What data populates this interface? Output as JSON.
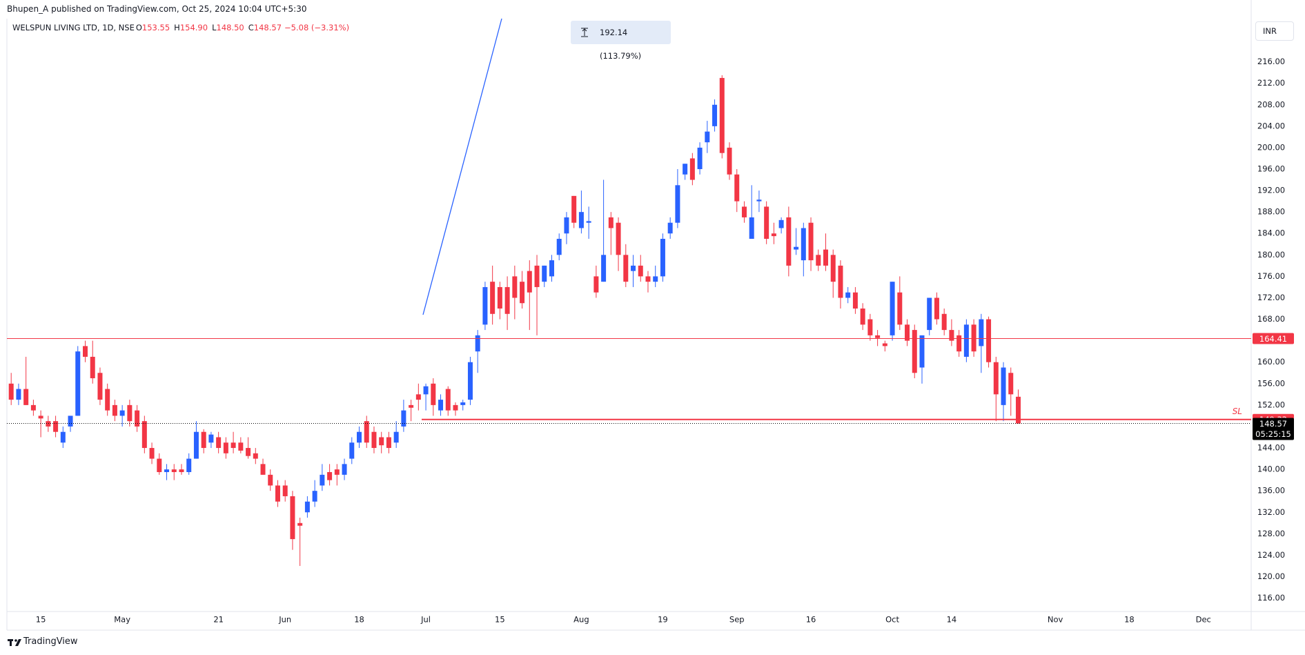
{
  "chart_data": {
    "type": "candlestick",
    "publisher_note": "Bhupen_A published on TradingView.com, Oct 25, 2024 10:04 UTC+5:30",
    "title": "WELSPUN LIVING LTD, 1D, NSE",
    "ohlc_legend": [
      {
        "label": "O",
        "value": "153.55"
      },
      {
        "label": "H",
        "value": "154.90"
      },
      {
        "label": "L",
        "value": "148.50"
      },
      {
        "label": "C",
        "value": "148.57"
      }
    ],
    "change": "−5.08 (−3.31%)",
    "measure": "192.14 (113.79%)",
    "currency": "INR",
    "brand": "TradingView",
    "up_color": "#2962ff",
    "down_color": "#f23645",
    "categories": [
      null,
      null,
      null,
      null,
      "15",
      null,
      null,
      null,
      null,
      null,
      null,
      null,
      null,
      null,
      null,
      "May",
      null,
      null,
      null,
      null,
      null,
      null,
      null,
      null,
      null,
      null,
      null,
      null,
      "21",
      null,
      null,
      null,
      null,
      null,
      null,
      null,
      null,
      "Jun",
      null,
      null,
      null,
      null,
      null,
      null,
      null,
      null,
      null,
      "18",
      null,
      null,
      null,
      null,
      null,
      null,
      null,
      null,
      "Jul",
      null,
      null,
      null,
      null,
      null,
      null,
      null,
      null,
      null,
      "15",
      null,
      null,
      null,
      null,
      null,
      null,
      null,
      null,
      null,
      null,
      "Aug",
      null,
      null,
      null,
      null,
      null,
      null,
      null,
      null,
      null,
      null,
      "19",
      null,
      null,
      null,
      null,
      null,
      null,
      null,
      null,
      null,
      "Sep",
      null,
      null,
      null,
      null,
      null,
      null,
      null,
      null,
      null,
      "16",
      null,
      null,
      null,
      null,
      null,
      null,
      null,
      null,
      null,
      null,
      "Oct",
      null,
      null,
      null,
      null,
      null,
      null,
      null,
      "14",
      null,
      null,
      null,
      null,
      null,
      null,
      null,
      null,
      null,
      null,
      null,
      null,
      null,
      "Nov",
      null,
      null,
      null,
      null,
      null,
      null,
      null,
      null,
      null,
      "18",
      null,
      null,
      null,
      null,
      null,
      null,
      null,
      null,
      null,
      "Dec",
      null,
      null,
      null,
      null,
      null,
      null
    ],
    "open": [
      156,
      153,
      155,
      152,
      150,
      149,
      149,
      145,
      148,
      150,
      163,
      161,
      158,
      155,
      152,
      150,
      152,
      151,
      149,
      144,
      142,
      139.5,
      140,
      140,
      139.5,
      142,
      147,
      145,
      146,
      145,
      145,
      145,
      144,
      143,
      141,
      139,
      137,
      137,
      135,
      130,
      132,
      134,
      137,
      139.5,
      140,
      139,
      142,
      145,
      149,
      147,
      146,
      146,
      145,
      148,
      152,
      154,
      154,
      156,
      151,
      155,
      152,
      152,
      153,
      162,
      167,
      175,
      174,
      174,
      176,
      175,
      177,
      178,
      175,
      176,
      180,
      184,
      191,
      185,
      186,
      176,
      175,
      187,
      186,
      180,
      177,
      178,
      176,
      175,
      176,
      184,
      186,
      195,
      198,
      196,
      201,
      204,
      213,
      200,
      195,
      189,
      183,
      190,
      189,
      184,
      185,
      187,
      181,
      179,
      186,
      180,
      181,
      180,
      178,
      172,
      173,
      170,
      168,
      165,
      163.5,
      165,
      173,
      167,
      166,
      159,
      166,
      172,
      169,
      166,
      165,
      161,
      167,
      163,
      168,
      160,
      152,
      158,
      153.55,
      null,
      null,
      null,
      null,
      null,
      null,
      null,
      null,
      null,
      null,
      null,
      null,
      null,
      null,
      null,
      null,
      null,
      null,
      null,
      null,
      null,
      null,
      null,
      null,
      null,
      null,
      null,
      null,
      null,
      null,
      null
    ],
    "high": [
      158,
      156,
      161,
      153,
      151,
      150,
      150,
      148,
      150,
      163,
      164,
      164,
      159,
      156,
      153,
      152,
      153,
      152,
      150,
      145,
      143,
      141,
      141,
      141,
      143,
      149,
      147.5,
      147,
      147,
      146,
      147,
      146,
      146,
      144,
      142,
      140,
      138,
      138,
      136,
      131,
      135,
      138,
      141,
      141,
      141,
      142,
      146,
      148,
      150,
      148,
      147,
      147,
      149,
      153,
      153,
      156,
      156,
      157,
      154,
      155.5,
      152.5,
      153,
      161,
      166,
      175,
      178,
      175,
      176,
      178,
      177,
      179,
      180,
      178,
      180,
      184,
      188,
      191,
      192,
      189,
      178,
      194,
      188,
      187,
      182,
      180,
      180,
      177,
      178,
      184,
      187,
      196,
      197,
      199,
      201,
      205,
      209,
      213.5,
      201,
      196,
      190,
      193,
      192,
      190,
      186,
      187,
      189,
      185,
      186,
      187,
      181,
      184,
      181,
      179,
      174,
      174,
      171,
      169,
      166,
      164,
      175,
      176,
      168,
      167,
      165,
      172,
      173,
      170,
      168,
      166,
      168,
      168,
      169,
      168.5,
      161,
      160,
      159,
      154.9,
      null,
      null,
      null,
      null,
      null,
      null,
      null,
      null,
      null,
      null,
      null,
      null,
      null,
      null,
      null,
      null,
      null,
      null,
      null,
      null,
      null,
      null,
      null,
      null,
      null,
      null,
      null,
      null,
      null,
      null,
      null
    ],
    "low": [
      152,
      152,
      152,
      150,
      146,
      147,
      146,
      144,
      147,
      150,
      160,
      156,
      152,
      150,
      149,
      148,
      148,
      147,
      143,
      141,
      139,
      138,
      138,
      139,
      139,
      142,
      143,
      144,
      143,
      142,
      143,
      143,
      142,
      141,
      139,
      136,
      133,
      134,
      125,
      122,
      131,
      133,
      136,
      137,
      137,
      138,
      141,
      144,
      144,
      143,
      143,
      143,
      144,
      147,
      149,
      151,
      151,
      150,
      150,
      150,
      150,
      151,
      152,
      158,
      166,
      167,
      168,
      166,
      168,
      170,
      166,
      165,
      174,
      175,
      179,
      182,
      185,
      184,
      183,
      172,
      175,
      180,
      177,
      174,
      174,
      175,
      173,
      174,
      175,
      183,
      185,
      194,
      193,
      195,
      199,
      203,
      198,
      194,
      188,
      186,
      183,
      188,
      182,
      182,
      184,
      176,
      180,
      176,
      177,
      177,
      177,
      172,
      170,
      171,
      169,
      166,
      164,
      163,
      162,
      164,
      166,
      163,
      157,
      156,
      165,
      167,
      165,
      163,
      161,
      160,
      161,
      158,
      159,
      149,
      149,
      150,
      148.5,
      null,
      null,
      null,
      null,
      null,
      null,
      null,
      null,
      null,
      null,
      null,
      null,
      null,
      null,
      null,
      null,
      null,
      null,
      null,
      null,
      null,
      null,
      null,
      null,
      null,
      null,
      null,
      null,
      null,
      null,
      null
    ],
    "close": [
      153,
      155,
      152,
      151,
      149.5,
      148,
      147,
      147,
      150,
      162,
      161,
      157,
      153,
      151,
      150,
      151,
      149,
      148,
      144,
      142,
      139.5,
      140,
      139.5,
      139.5,
      142,
      147,
      144,
      146.5,
      144,
      143,
      144,
      143.5,
      142.5,
      142,
      139,
      137,
      134,
      135,
      127,
      129.5,
      134,
      136,
      139,
      138,
      139,
      141,
      145,
      147,
      145,
      144,
      144.5,
      144,
      147,
      151,
      151.5,
      153,
      155.5,
      152,
      153,
      151,
      151,
      152.5,
      160,
      165,
      174,
      169,
      170,
      169,
      172,
      171,
      173,
      174,
      178,
      179,
      183,
      187,
      186,
      188,
      186.3,
      173,
      180,
      185,
      180,
      175,
      178,
      176,
      175,
      176,
      183,
      186,
      193,
      197,
      194,
      200,
      203,
      208,
      199,
      195,
      190,
      187,
      187,
      190.3,
      183,
      183.5,
      186.5,
      178,
      181.5,
      185,
      179,
      178,
      178,
      175,
      172,
      173,
      170,
      167,
      165,
      164.5,
      163,
      175,
      167,
      164,
      158,
      165,
      172,
      168,
      166,
      164,
      162,
      167,
      162,
      168,
      160,
      154,
      159,
      154,
      148.57,
      null,
      null,
      null,
      null,
      null,
      null,
      null,
      null,
      null,
      null,
      null,
      null,
      null,
      null,
      null,
      null,
      null,
      null,
      null,
      null,
      null,
      null,
      null,
      null,
      null,
      null,
      null,
      null,
      null,
      null,
      null
    ],
    "ylim": [
      113.5,
      224.06
    ],
    "yticks": [
      {
        "value": 116,
        "label": "116.00"
      },
      {
        "value": 120,
        "label": "120.00"
      },
      {
        "value": 124,
        "label": "124.00"
      },
      {
        "value": 128,
        "label": "128.00"
      },
      {
        "value": 132,
        "label": "132.00"
      },
      {
        "value": 136,
        "label": "136.00"
      },
      {
        "value": 140,
        "label": "140.00"
      },
      {
        "value": 144,
        "label": "144.00"
      },
      {
        "value": 148,
        "label": "148.00"
      },
      {
        "value": 152,
        "label": "152.00"
      },
      {
        "value": 156,
        "label": "156.00"
      },
      {
        "value": 160,
        "label": "160.00"
      },
      {
        "value": 164,
        "label": "164.00"
      },
      {
        "value": 168,
        "label": "168.00"
      },
      {
        "value": 172,
        "label": "172.00"
      },
      {
        "value": 176,
        "label": "176.00"
      },
      {
        "value": 180,
        "label": "180.00"
      },
      {
        "value": 184,
        "label": "184.00"
      },
      {
        "value": 188,
        "label": "188.00"
      },
      {
        "value": 192,
        "label": "192.00"
      },
      {
        "value": 196,
        "label": "196.00"
      },
      {
        "value": 200,
        "label": "200.00"
      },
      {
        "value": 204,
        "label": "204.00"
      },
      {
        "value": 208,
        "label": "208.00"
      },
      {
        "value": 212,
        "label": "212.00"
      },
      {
        "value": 216,
        "label": "216.00"
      }
    ],
    "levels": [
      {
        "value": 164.41,
        "color": "#f23645"
      },
      {
        "value": 149.32,
        "tag": "SL",
        "color": "#f23645"
      }
    ],
    "last": {
      "value": 148.57,
      "countdown": "05:25:15",
      "color": "#000000"
    }
  }
}
